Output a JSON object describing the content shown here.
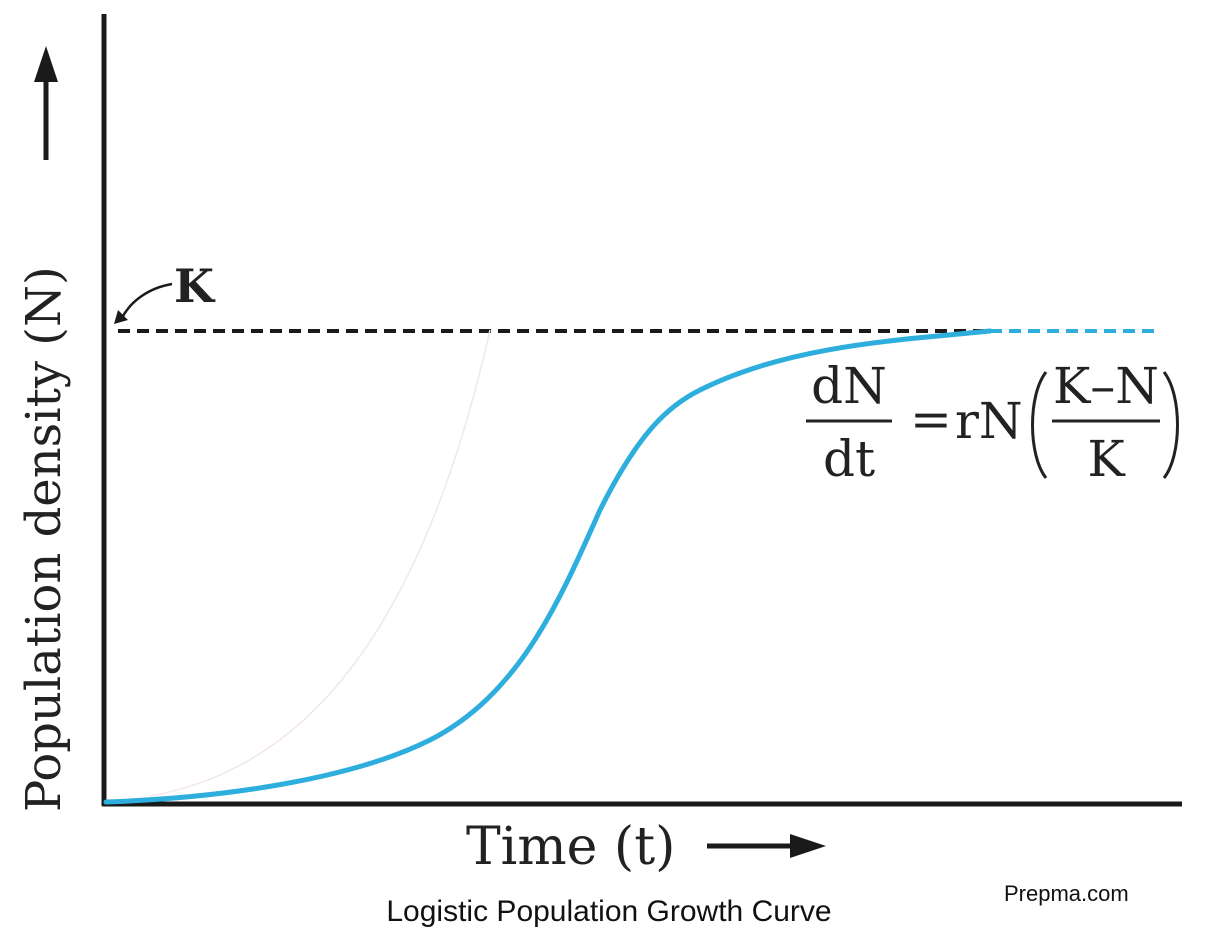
{
  "diagram": {
    "y_axis_label": "Population density (N)",
    "x_axis_label": "Time (t)",
    "k_label": "K",
    "caption": "Logistic Population Growth Curve",
    "watermark": "Prepma.com",
    "equation": {
      "lhs_numerator": "dN",
      "lhs_denominator": "dt",
      "equals": "=",
      "factor": "rN",
      "frac_numerator": "K–N",
      "frac_denominator": "K"
    },
    "colors": {
      "axis": "#1a1a1a",
      "curve": "#2eaedd",
      "carrying_capacity_line": "#1a1a1a",
      "carrying_capacity_line_tail": "#2eaedd",
      "text": "#222222"
    }
  }
}
